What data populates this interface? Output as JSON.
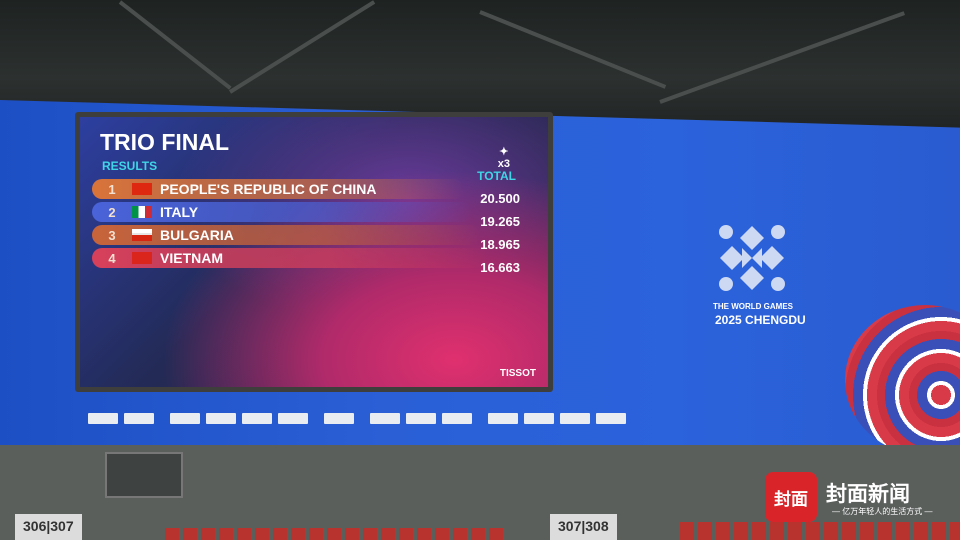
{
  "scoreboard": {
    "title": "TRIO FINAL",
    "subtitle": "RESULTS",
    "multiplier": "x3",
    "total_label": "TOTAL",
    "brand": "TISSOT",
    "results": [
      {
        "rank": "1",
        "country": "PEOPLE'S REPUBLIC OF CHINA",
        "score": "20.500",
        "flag": "china-flag",
        "row_color": "#d9743a"
      },
      {
        "rank": "2",
        "country": "ITALY",
        "score": "19.265",
        "flag": "italy-flag",
        "row_color": "#4a63d8"
      },
      {
        "rank": "3",
        "country": "BULGARIA",
        "score": "18.965",
        "flag": "bulgaria-flag",
        "row_color": "#c8643a"
      },
      {
        "rank": "4",
        "country": "VIETNAM",
        "score": "16.663",
        "flag": "vietnam-flag",
        "row_color": "#d8405a"
      }
    ]
  },
  "event": {
    "line1": "THE WORLD GAMES",
    "line2": "2025 CHENGDU"
  },
  "sections": [
    "306|307",
    "307|308"
  ],
  "watermark": {
    "badge": "封面",
    "name": "封面新闻",
    "slogan": "— 亿万年轻人的生活方式 —"
  },
  "colors": {
    "banner": "#2a5fd6",
    "accent": "#3fd5e6"
  }
}
